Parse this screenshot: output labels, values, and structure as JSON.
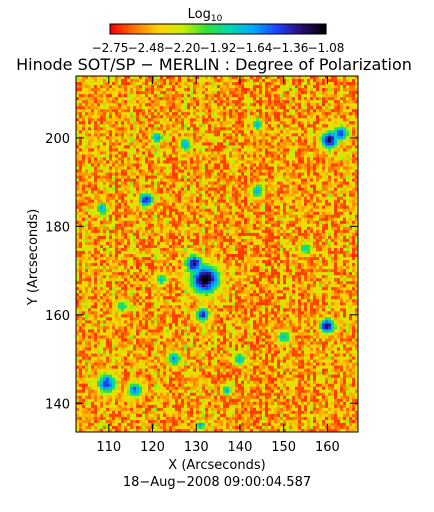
{
  "colorbar": {
    "label": "Log",
    "label_sub": "10",
    "tick_labels": [
      "−2.75",
      "−2.48",
      "−2.20",
      "−1.92",
      "−1.64",
      "−1.36",
      "−1.08"
    ],
    "range": [
      -2.75,
      -1.08
    ],
    "colormap": [
      "#ff0000",
      "#ff7a00",
      "#ffd400",
      "#c8f000",
      "#33e03a",
      "#00d8b0",
      "#00a8ff",
      "#2040ff",
      "#2a0d6e",
      "#000000"
    ]
  },
  "title": "Hinode SOT/SP − MERLIN : Degree of Polarization",
  "timestamp": "18−Aug−2008 09:00:04.587",
  "chart_data": {
    "type": "heatmap",
    "title": "Hinode SOT/SP − MERLIN : Degree of Polarization",
    "xlabel": "X (Arcseconds)",
    "ylabel": "Y (Arcseconds)",
    "xlim": [
      102.5,
      167
    ],
    "ylim": [
      133.5,
      214
    ],
    "xticks": [
      110,
      120,
      130,
      140,
      150,
      160
    ],
    "yticks": [
      140,
      160,
      180,
      200
    ],
    "colorbar_label": "Log10",
    "colorbar_range": [
      -2.75,
      -1.08
    ],
    "background_level": -2.75,
    "features": [
      {
        "x": 132,
        "y": 168,
        "peak": -1.08,
        "sigma": 2.6
      },
      {
        "x": 129.5,
        "y": 171.5,
        "peak": -1.2,
        "sigma": 1.6
      },
      {
        "x": 131.5,
        "y": 160,
        "peak": -1.3,
        "sigma": 1.2
      },
      {
        "x": 160.5,
        "y": 199.5,
        "peak": -1.2,
        "sigma": 1.6
      },
      {
        "x": 163,
        "y": 201,
        "peak": -1.4,
        "sigma": 1.4
      },
      {
        "x": 160,
        "y": 157.5,
        "peak": -1.2,
        "sigma": 1.4
      },
      {
        "x": 109.5,
        "y": 144.5,
        "peak": -1.4,
        "sigma": 1.8
      },
      {
        "x": 116,
        "y": 143,
        "peak": -1.5,
        "sigma": 1.4
      },
      {
        "x": 118.5,
        "y": 186,
        "peak": -1.3,
        "sigma": 1.3
      },
      {
        "x": 108.5,
        "y": 184,
        "peak": -1.6,
        "sigma": 1.1
      },
      {
        "x": 121,
        "y": 200,
        "peak": -1.6,
        "sigma": 1.1
      },
      {
        "x": 127.5,
        "y": 198.5,
        "peak": -1.6,
        "sigma": 1.2
      },
      {
        "x": 144,
        "y": 203,
        "peak": -1.7,
        "sigma": 1.1
      },
      {
        "x": 144,
        "y": 188,
        "peak": -1.7,
        "sigma": 1.3
      },
      {
        "x": 125,
        "y": 150,
        "peak": -1.6,
        "sigma": 1.3
      },
      {
        "x": 140,
        "y": 150,
        "peak": -1.7,
        "sigma": 1.2
      },
      {
        "x": 150,
        "y": 155,
        "peak": -1.7,
        "sigma": 1.2
      },
      {
        "x": 137,
        "y": 143,
        "peak": -1.7,
        "sigma": 1.0
      },
      {
        "x": 131,
        "y": 135,
        "peak": -1.6,
        "sigma": 0.9
      },
      {
        "x": 122,
        "y": 168,
        "peak": -1.8,
        "sigma": 1.2
      },
      {
        "x": 155,
        "y": 175,
        "peak": -1.8,
        "sigma": 1.3
      },
      {
        "x": 113,
        "y": 162,
        "peak": -1.8,
        "sigma": 1.2
      }
    ]
  }
}
